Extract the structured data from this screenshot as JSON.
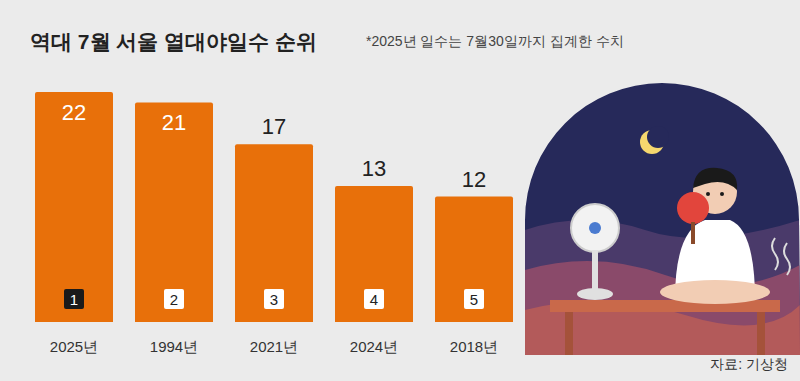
{
  "chart_data": {
    "type": "bar",
    "title": "역대 7월 서울 열대야일수 순위",
    "subtitle": "*2025년 일수는 7월30일까지 집계한 수치",
    "source": "자료: 기상청",
    "categories": [
      "2025년",
      "1994년",
      "2021년",
      "2024년",
      "2018년"
    ],
    "values": [
      22,
      21,
      17,
      13,
      12
    ],
    "ranks": [
      1,
      2,
      3,
      4,
      5
    ],
    "color": "#e8700a",
    "ylim": [
      0,
      22
    ],
    "data_labels": true,
    "tick_labels": "x",
    "grid": false
  }
}
